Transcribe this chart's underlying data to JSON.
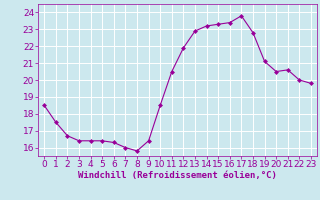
{
  "x": [
    0,
    1,
    2,
    3,
    4,
    5,
    6,
    7,
    8,
    9,
    10,
    11,
    12,
    13,
    14,
    15,
    16,
    17,
    18,
    19,
    20,
    21,
    22,
    23
  ],
  "y": [
    18.5,
    17.5,
    16.7,
    16.4,
    16.4,
    16.4,
    16.3,
    16.0,
    15.8,
    16.4,
    18.5,
    20.5,
    21.9,
    22.9,
    23.2,
    23.3,
    23.4,
    23.8,
    22.8,
    21.1,
    20.5,
    20.6,
    20.0,
    19.8
  ],
  "line_color": "#990099",
  "marker": "D",
  "marker_size": 2,
  "bg_color": "#cce8ee",
  "grid_color": "#ffffff",
  "xlabel": "Windchill (Refroidissement éolien,°C)",
  "tick_color": "#990099",
  "ylim": [
    15.5,
    24.5
  ],
  "xlim": [
    -0.5,
    23.5
  ],
  "yticks": [
    16,
    17,
    18,
    19,
    20,
    21,
    22,
    23,
    24
  ],
  "xticks": [
    0,
    1,
    2,
    3,
    4,
    5,
    6,
    7,
    8,
    9,
    10,
    11,
    12,
    13,
    14,
    15,
    16,
    17,
    18,
    19,
    20,
    21,
    22,
    23
  ],
  "xlabel_fontsize": 6.5,
  "tick_fontsize": 6.5
}
